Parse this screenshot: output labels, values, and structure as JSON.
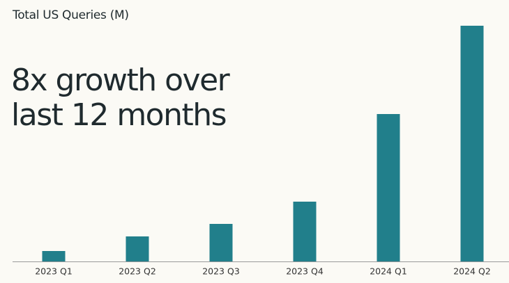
{
  "chart_data": {
    "type": "bar",
    "title": "Total US Queries (M)",
    "annotation": [
      "8x growth over",
      "last 12 months"
    ],
    "categories": [
      "2023 Q1",
      "2023 Q2",
      "2023 Q3",
      "2023 Q4",
      "2024 Q1",
      "2024 Q2"
    ],
    "values": [
      15,
      36,
      54,
      86,
      212,
      339
    ],
    "color": "#217f8b"
  }
}
